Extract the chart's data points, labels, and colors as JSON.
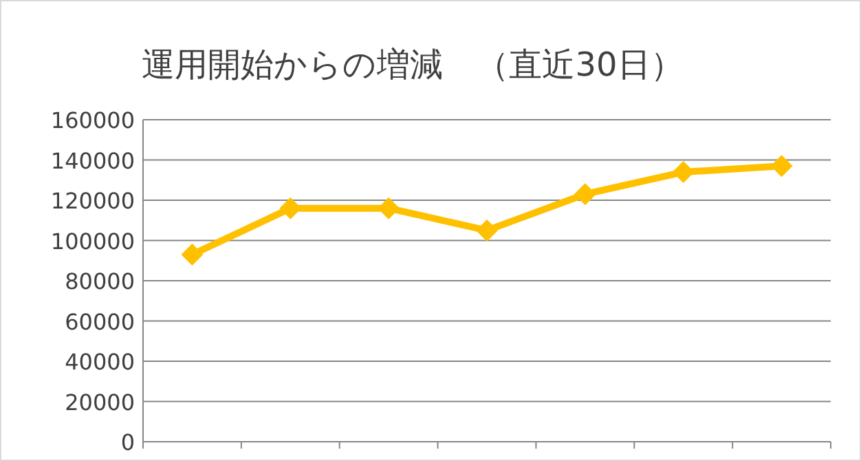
{
  "chart_data": {
    "type": "line",
    "title": "運用開始からの増減　（直近30日）",
    "categories": [
      null,
      null,
      null,
      null,
      null,
      null,
      null
    ],
    "series": [
      {
        "color": "#ffc000",
        "values": [
          93000,
          116000,
          116000,
          105000,
          123000,
          134000,
          137000
        ]
      }
    ],
    "ylim": [
      0,
      160000
    ],
    "yticks": [
      0,
      20000,
      40000,
      60000,
      80000,
      100000,
      120000,
      140000,
      160000
    ],
    "grid": "y",
    "marker": "diamond",
    "line_style": "solid"
  }
}
